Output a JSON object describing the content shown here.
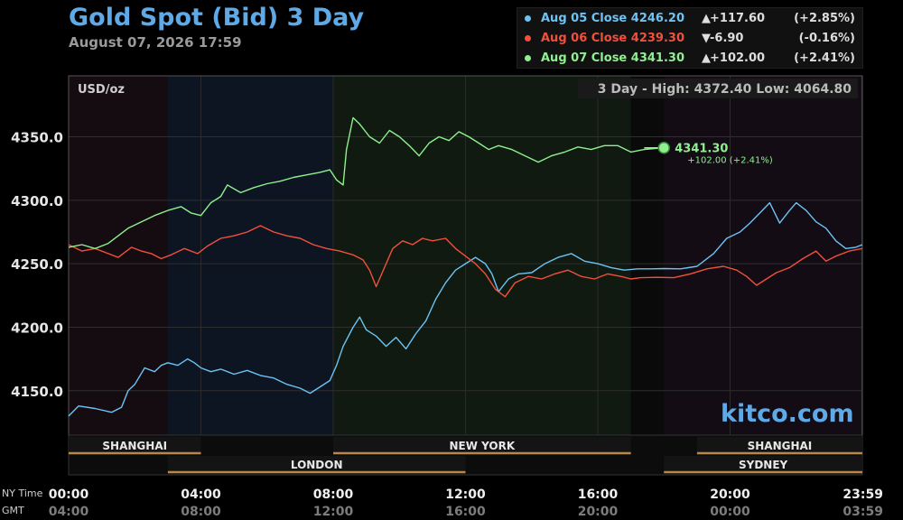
{
  "header": {
    "title": "Gold Spot (Bid) 3 Day",
    "subtitle": "August 07, 2026 17:59"
  },
  "legend": [
    {
      "label": "Aug 05 Close 4246.20",
      "arrow": "▲",
      "change": "+117.60",
      "pct": "(+2.85%)",
      "color": "#6cc3f4"
    },
    {
      "label": "Aug 06 Close 4239.30",
      "arrow": "▼",
      "change": "-6.90",
      "pct": "(-0.16%)",
      "color": "#f0503c"
    },
    {
      "label": "Aug 07 Close 4341.30",
      "arrow": "▲",
      "change": "+102.00",
      "pct": "(+2.41%)",
      "color": "#8ef08e"
    }
  ],
  "brand": "kitco.com",
  "chart_data": {
    "type": "line",
    "units_label": "USD/oz",
    "high_low_label": "3 Day - High: 4372.40   Low: 4064.80",
    "ylim": [
      4115,
      4398
    ],
    "y_ticks": [
      "4350.0",
      "4300.0",
      "4250.0",
      "4200.0",
      "4150.0"
    ],
    "y_tick_values": [
      4350,
      4300,
      4250,
      4200,
      4150
    ],
    "xlim": [
      0,
      24
    ],
    "x_tick_positions": [
      0,
      4,
      8,
      12,
      16,
      20,
      23.98
    ],
    "x_ticks_ny": [
      "00:00",
      "04:00",
      "08:00",
      "12:00",
      "16:00",
      "20:00",
      "23:59"
    ],
    "x_ticks_gmt": [
      "04:00",
      "08:00",
      "12:00",
      "16:00",
      "20:00",
      "00:00",
      "03:59"
    ],
    "row_label_ny": "NY Time",
    "row_label_gmt": "GMT",
    "last_value_label": "4341.30",
    "last_change_label": "+102.00 (+2.41%)",
    "last_point": [
      18,
      4341.3
    ],
    "sessions": [
      {
        "name": "SHANGHAI",
        "start": 0,
        "end": 4,
        "row": 0
      },
      {
        "name": "NEW YORK",
        "start": 8,
        "end": 17,
        "row": 0
      },
      {
        "name": "SHANGHAI",
        "start": 19,
        "end": 24,
        "row": 0
      },
      {
        "name": "LONDON",
        "start": 3,
        "end": 12,
        "row": 1
      },
      {
        "name": "SYDNEY",
        "start": 18,
        "end": 24,
        "row": 1
      }
    ],
    "series": [
      {
        "name": "Aug 05 Close 4246.20",
        "color": "#6cc3f4",
        "points": [
          [
            0,
            4130
          ],
          [
            0.3,
            4138
          ],
          [
            0.8,
            4136
          ],
          [
            1.3,
            4133
          ],
          [
            1.6,
            4137
          ],
          [
            1.8,
            4150
          ],
          [
            2.0,
            4155
          ],
          [
            2.3,
            4168
          ],
          [
            2.6,
            4165
          ],
          [
            2.8,
            4170
          ],
          [
            3.0,
            4172
          ],
          [
            3.3,
            4170
          ],
          [
            3.6,
            4175
          ],
          [
            3.8,
            4172
          ],
          [
            4.0,
            4168
          ],
          [
            4.3,
            4165
          ],
          [
            4.6,
            4167
          ],
          [
            5.0,
            4163
          ],
          [
            5.4,
            4166
          ],
          [
            5.8,
            4162
          ],
          [
            6.2,
            4160
          ],
          [
            6.6,
            4155
          ],
          [
            7.0,
            4152
          ],
          [
            7.3,
            4148
          ],
          [
            7.6,
            4153
          ],
          [
            7.9,
            4158
          ],
          [
            8.1,
            4170
          ],
          [
            8.3,
            4185
          ],
          [
            8.6,
            4200
          ],
          [
            8.8,
            4208
          ],
          [
            9.0,
            4198
          ],
          [
            9.3,
            4193
          ],
          [
            9.6,
            4185
          ],
          [
            9.9,
            4192
          ],
          [
            10.2,
            4183
          ],
          [
            10.5,
            4195
          ],
          [
            10.8,
            4205
          ],
          [
            11.1,
            4222
          ],
          [
            11.4,
            4235
          ],
          [
            11.7,
            4245
          ],
          [
            12.0,
            4250
          ],
          [
            12.3,
            4255
          ],
          [
            12.6,
            4250
          ],
          [
            12.8,
            4242
          ],
          [
            13.0,
            4228
          ],
          [
            13.3,
            4238
          ],
          [
            13.6,
            4242
          ],
          [
            14.0,
            4243
          ],
          [
            14.4,
            4250
          ],
          [
            14.8,
            4255
          ],
          [
            15.2,
            4258
          ],
          [
            15.6,
            4252
          ],
          [
            16.0,
            4250
          ],
          [
            16.4,
            4247
          ],
          [
            16.8,
            4245
          ],
          [
            17.2,
            4246
          ],
          [
            17.6,
            4246
          ],
          [
            18.0,
            4246.2
          ],
          [
            18.5,
            4246
          ],
          [
            19.0,
            4248
          ],
          [
            19.5,
            4258
          ],
          [
            19.9,
            4270
          ],
          [
            20.3,
            4275
          ],
          [
            20.6,
            4282
          ],
          [
            20.9,
            4290
          ],
          [
            21.2,
            4298
          ],
          [
            21.5,
            4282
          ],
          [
            21.8,
            4292
          ],
          [
            22.0,
            4298
          ],
          [
            22.3,
            4292
          ],
          [
            22.6,
            4283
          ],
          [
            22.9,
            4278
          ],
          [
            23.2,
            4268
          ],
          [
            23.5,
            4262
          ],
          [
            23.8,
            4263
          ],
          [
            24.0,
            4265
          ]
        ]
      },
      {
        "name": "Aug 06 Close 4239.30",
        "color": "#f0503c",
        "points": [
          [
            0,
            4265
          ],
          [
            0.4,
            4260
          ],
          [
            0.8,
            4262
          ],
          [
            1.2,
            4258
          ],
          [
            1.5,
            4255
          ],
          [
            1.9,
            4263
          ],
          [
            2.2,
            4260
          ],
          [
            2.5,
            4258
          ],
          [
            2.8,
            4254
          ],
          [
            3.1,
            4257
          ],
          [
            3.5,
            4262
          ],
          [
            3.9,
            4258
          ],
          [
            4.2,
            4264
          ],
          [
            4.6,
            4270
          ],
          [
            5.0,
            4272
          ],
          [
            5.4,
            4275
          ],
          [
            5.8,
            4280
          ],
          [
            6.2,
            4275
          ],
          [
            6.6,
            4272
          ],
          [
            7.0,
            4270
          ],
          [
            7.4,
            4265
          ],
          [
            7.8,
            4262
          ],
          [
            8.2,
            4260
          ],
          [
            8.6,
            4257
          ],
          [
            8.9,
            4253
          ],
          [
            9.1,
            4245
          ],
          [
            9.3,
            4232
          ],
          [
            9.5,
            4244
          ],
          [
            9.8,
            4262
          ],
          [
            10.1,
            4268
          ],
          [
            10.4,
            4265
          ],
          [
            10.7,
            4270
          ],
          [
            11.0,
            4268
          ],
          [
            11.4,
            4270
          ],
          [
            11.7,
            4262
          ],
          [
            12.0,
            4256
          ],
          [
            12.3,
            4250
          ],
          [
            12.6,
            4242
          ],
          [
            12.9,
            4230
          ],
          [
            13.2,
            4224
          ],
          [
            13.5,
            4235
          ],
          [
            13.9,
            4240
          ],
          [
            14.3,
            4238
          ],
          [
            14.7,
            4242
          ],
          [
            15.1,
            4245
          ],
          [
            15.5,
            4240
          ],
          [
            15.9,
            4238
          ],
          [
            16.3,
            4242
          ],
          [
            16.7,
            4240
          ],
          [
            17.0,
            4238
          ],
          [
            17.3,
            4239
          ],
          [
            17.8,
            4239.3
          ],
          [
            18.3,
            4239
          ],
          [
            18.8,
            4242
          ],
          [
            19.3,
            4246
          ],
          [
            19.8,
            4248
          ],
          [
            20.2,
            4245
          ],
          [
            20.5,
            4240
          ],
          [
            20.8,
            4233
          ],
          [
            21.1,
            4238
          ],
          [
            21.4,
            4243
          ],
          [
            21.8,
            4247
          ],
          [
            22.2,
            4254
          ],
          [
            22.6,
            4260
          ],
          [
            22.9,
            4252
          ],
          [
            23.2,
            4256
          ],
          [
            23.6,
            4260
          ],
          [
            24.0,
            4262
          ]
        ]
      },
      {
        "name": "Aug 07 Close 4341.30",
        "color": "#8ef08e",
        "points": [
          [
            0,
            4263
          ],
          [
            0.4,
            4265
          ],
          [
            0.8,
            4262
          ],
          [
            1.2,
            4266
          ],
          [
            1.5,
            4272
          ],
          [
            1.8,
            4278
          ],
          [
            2.2,
            4283
          ],
          [
            2.6,
            4288
          ],
          [
            3.0,
            4292
          ],
          [
            3.4,
            4295
          ],
          [
            3.7,
            4290
          ],
          [
            4.0,
            4288
          ],
          [
            4.3,
            4298
          ],
          [
            4.6,
            4303
          ],
          [
            4.8,
            4312
          ],
          [
            5.2,
            4306
          ],
          [
            5.6,
            4310
          ],
          [
            6.0,
            4313
          ],
          [
            6.4,
            4315
          ],
          [
            6.8,
            4318
          ],
          [
            7.2,
            4320
          ],
          [
            7.6,
            4322
          ],
          [
            7.9,
            4324
          ],
          [
            8.1,
            4316
          ],
          [
            8.3,
            4312
          ],
          [
            8.4,
            4340
          ],
          [
            8.6,
            4365
          ],
          [
            8.8,
            4360
          ],
          [
            9.1,
            4350
          ],
          [
            9.4,
            4345
          ],
          [
            9.7,
            4355
          ],
          [
            10.0,
            4350
          ],
          [
            10.3,
            4343
          ],
          [
            10.6,
            4335
          ],
          [
            10.9,
            4345
          ],
          [
            11.2,
            4350
          ],
          [
            11.5,
            4347
          ],
          [
            11.8,
            4354
          ],
          [
            12.1,
            4350
          ],
          [
            12.4,
            4345
          ],
          [
            12.7,
            4340
          ],
          [
            13.0,
            4343
          ],
          [
            13.4,
            4340
          ],
          [
            13.8,
            4335
          ],
          [
            14.2,
            4330
          ],
          [
            14.6,
            4335
          ],
          [
            15.0,
            4338
          ],
          [
            15.4,
            4342
          ],
          [
            15.8,
            4340
          ],
          [
            16.2,
            4343
          ],
          [
            16.6,
            4343
          ],
          [
            17.0,
            4338
          ],
          [
            17.4,
            4340
          ],
          [
            18.0,
            4341.3
          ]
        ]
      }
    ]
  }
}
